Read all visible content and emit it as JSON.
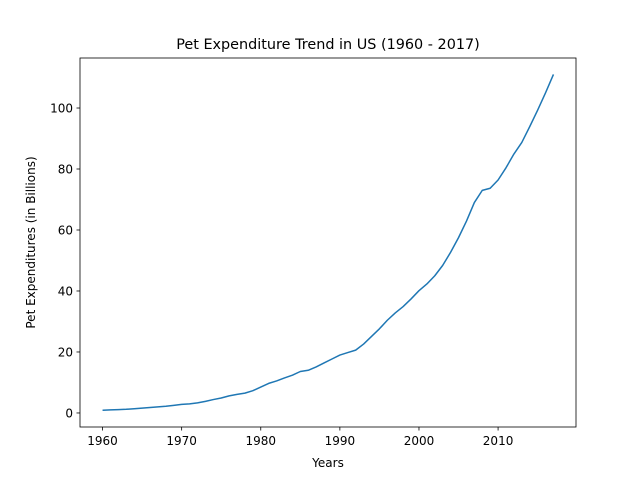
{
  "chart_data": {
    "type": "line",
    "title": "Pet Expenditure Trend in US (1960 - 2017)",
    "xlabel": "Years",
    "ylabel": "Pet Expenditures (in Billions)",
    "xlim": [
      1957.15,
      2019.85
    ],
    "ylim": [
      -4.6,
      116.4
    ],
    "xticks": [
      1960,
      1970,
      1980,
      1990,
      2000,
      2010
    ],
    "yticks": [
      0,
      20,
      40,
      60,
      80,
      100
    ],
    "grid": false,
    "series": [
      {
        "color": "#1f77b4",
        "x": [
          1960,
          1961,
          1962,
          1963,
          1964,
          1965,
          1966,
          1967,
          1968,
          1969,
          1970,
          1971,
          1972,
          1973,
          1974,
          1975,
          1976,
          1977,
          1978,
          1979,
          1980,
          1981,
          1982,
          1983,
          1984,
          1985,
          1986,
          1987,
          1988,
          1989,
          1990,
          1991,
          1992,
          1993,
          1994,
          1995,
          1996,
          1997,
          1998,
          1999,
          2000,
          2001,
          2002,
          2003,
          2004,
          2005,
          2006,
          2007,
          2008,
          2009,
          2010,
          2011,
          2012,
          2013,
          2014,
          2015,
          2016,
          2017
        ],
        "values": [
          0.9,
          1.0,
          1.1,
          1.2,
          1.4,
          1.6,
          1.8,
          2.0,
          2.2,
          2.5,
          2.8,
          3.0,
          3.3,
          3.8,
          4.4,
          4.9,
          5.6,
          6.1,
          6.5,
          7.3,
          8.5,
          9.7,
          10.5,
          11.5,
          12.4,
          13.6,
          14.0,
          15.1,
          16.4,
          17.7,
          19.0,
          19.8,
          20.6,
          22.6,
          25.1,
          27.6,
          30.4,
          32.8,
          34.9,
          37.4,
          40.1,
          42.3,
          45.0,
          48.4,
          52.7,
          57.5,
          62.9,
          69.0,
          73.0,
          73.7,
          76.4,
          80.4,
          84.9,
          88.7,
          93.9,
          99.3,
          105.0,
          111.0
        ]
      }
    ]
  }
}
